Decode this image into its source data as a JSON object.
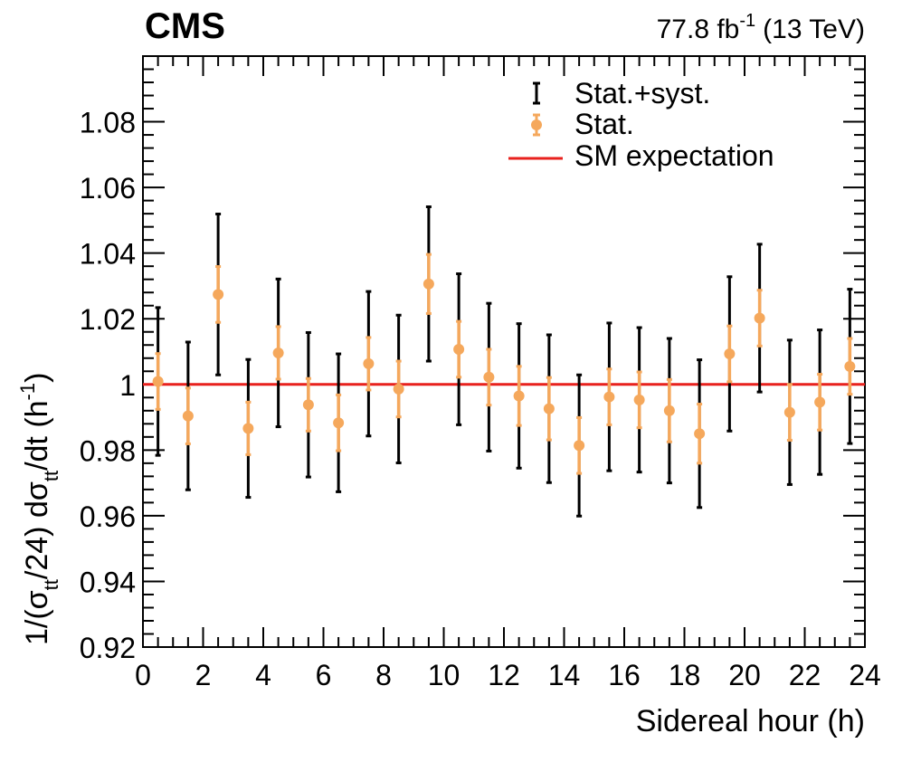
{
  "header": {
    "experiment": "CMS",
    "lumi_value": "77.8 fb",
    "lumi_exp": "-1",
    "energy": "(13 TeV)"
  },
  "legend": {
    "stat_syst": "Stat.+syst.",
    "stat": "Stat.",
    "sm": "SM expectation"
  },
  "colors": {
    "stat_syst": "#000000",
    "stat": "#f5a85c",
    "sm": "#e8211d"
  },
  "chart_data": {
    "type": "scatter",
    "title": "",
    "xlabel": "Sidereal hour (h)",
    "ylabel": "1/(σtt/24) dσtt/dt (h⁻¹)",
    "ylabel_parts": {
      "p1": "1/(σ",
      "sub1": "tt",
      "p2": "/24) dσ",
      "sub2": "tt",
      "p3": "/dt (h",
      "sup": "-1",
      "p4": ")"
    },
    "xlim": [
      0,
      24
    ],
    "ylim": [
      0.92,
      1.1
    ],
    "x_ticks": [
      0,
      2,
      4,
      6,
      8,
      10,
      12,
      14,
      16,
      18,
      20,
      22,
      24
    ],
    "y_ticks": [
      0.92,
      0.94,
      0.96,
      0.98,
      1.0,
      1.02,
      1.04,
      1.06,
      1.08
    ],
    "x_tick_labels": [
      "0",
      "2",
      "4",
      "6",
      "8",
      "10",
      "12",
      "14",
      "16",
      "18",
      "20",
      "22",
      "24"
    ],
    "y_tick_labels": [
      "0.92",
      "0.94",
      "0.96",
      "0.98",
      "1",
      "1.02",
      "1.04",
      "1.06",
      "1.08"
    ],
    "sm_expectation": 1.0,
    "points": [
      {
        "x": 0.5,
        "y": 1.0009,
        "stat": 0.0085,
        "total": 0.0225
      },
      {
        "x": 1.5,
        "y": 0.9904,
        "stat": 0.0085,
        "total": 0.0225
      },
      {
        "x": 2.5,
        "y": 1.0274,
        "stat": 0.0085,
        "total": 0.0245
      },
      {
        "x": 3.5,
        "y": 0.9866,
        "stat": 0.008,
        "total": 0.021
      },
      {
        "x": 4.5,
        "y": 1.0096,
        "stat": 0.008,
        "total": 0.0225
      },
      {
        "x": 5.5,
        "y": 0.9938,
        "stat": 0.008,
        "total": 0.022
      },
      {
        "x": 6.5,
        "y": 0.9883,
        "stat": 0.0085,
        "total": 0.021
      },
      {
        "x": 7.5,
        "y": 1.0063,
        "stat": 0.008,
        "total": 0.022
      },
      {
        "x": 8.5,
        "y": 0.9986,
        "stat": 0.0085,
        "total": 0.0225
      },
      {
        "x": 9.5,
        "y": 1.0306,
        "stat": 0.009,
        "total": 0.0235
      },
      {
        "x": 10.5,
        "y": 1.0107,
        "stat": 0.0085,
        "total": 0.023
      },
      {
        "x": 11.5,
        "y": 1.0022,
        "stat": 0.0085,
        "total": 0.0225
      },
      {
        "x": 12.5,
        "y": 0.9965,
        "stat": 0.009,
        "total": 0.022
      },
      {
        "x": 13.5,
        "y": 0.9926,
        "stat": 0.0095,
        "total": 0.0225
      },
      {
        "x": 14.5,
        "y": 0.9814,
        "stat": 0.0085,
        "total": 0.0215
      },
      {
        "x": 15.5,
        "y": 0.9962,
        "stat": 0.0085,
        "total": 0.0225
      },
      {
        "x": 16.5,
        "y": 0.9953,
        "stat": 0.0085,
        "total": 0.022
      },
      {
        "x": 17.5,
        "y": 0.992,
        "stat": 0.0095,
        "total": 0.022
      },
      {
        "x": 18.5,
        "y": 0.985,
        "stat": 0.009,
        "total": 0.0225
      },
      {
        "x": 19.5,
        "y": 1.0093,
        "stat": 0.0085,
        "total": 0.0235
      },
      {
        "x": 20.5,
        "y": 1.0202,
        "stat": 0.0085,
        "total": 0.0225
      },
      {
        "x": 21.5,
        "y": 0.9915,
        "stat": 0.0085,
        "total": 0.022
      },
      {
        "x": 22.5,
        "y": 0.9946,
        "stat": 0.0085,
        "total": 0.022
      },
      {
        "x": 23.5,
        "y": 1.0055,
        "stat": 0.0085,
        "total": 0.0235
      }
    ]
  }
}
